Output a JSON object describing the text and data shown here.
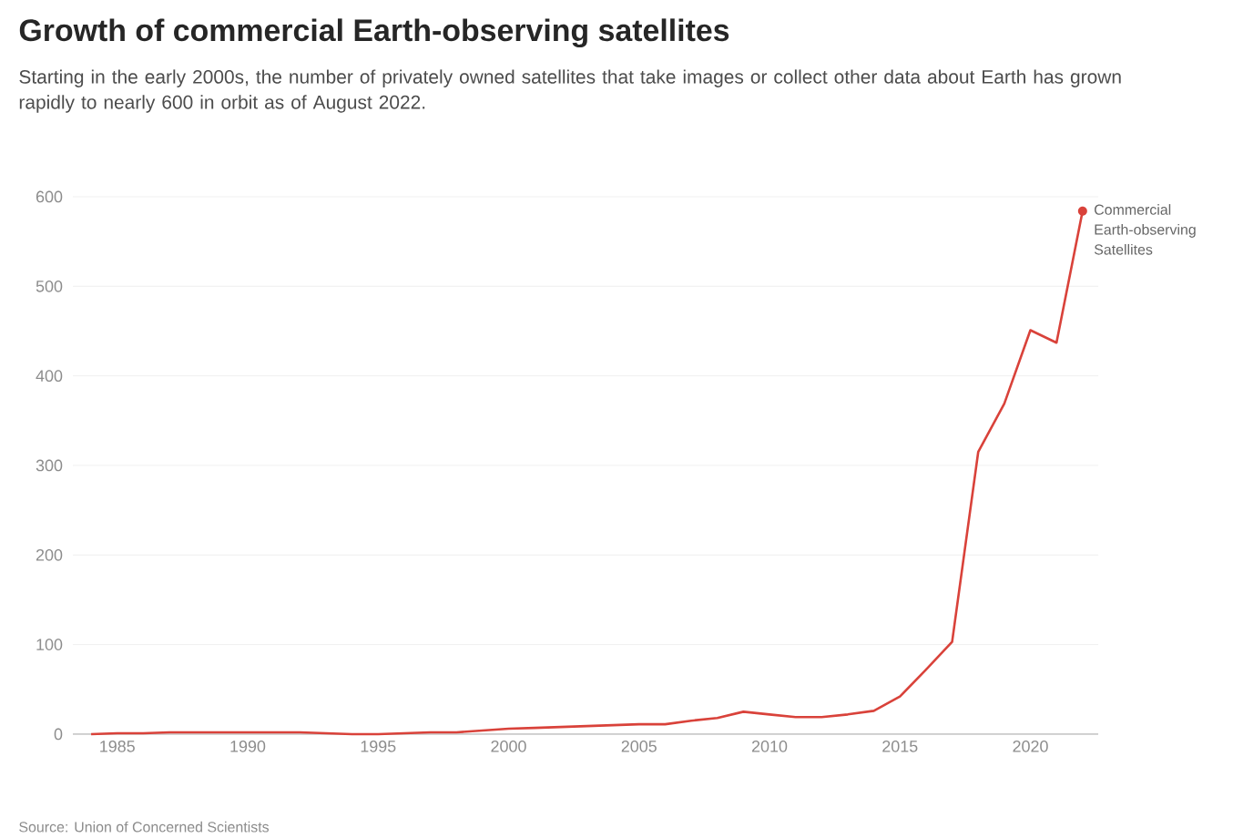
{
  "chart_data": {
    "type": "line",
    "title": "Growth of commercial Earth-observing satellites",
    "subtitle": "Starting in the early 2000s, the number of privately owned satellites that take images or collect other data about Earth has grown rapidly to nearly 600 in orbit as of August 2022.",
    "x": [
      1984,
      1985,
      1986,
      1987,
      1988,
      1989,
      1990,
      1991,
      1992,
      1993,
      1994,
      1995,
      1996,
      1997,
      1998,
      1999,
      2000,
      2001,
      2002,
      2003,
      2004,
      2005,
      2006,
      2007,
      2008,
      2009,
      2010,
      2011,
      2012,
      2013,
      2014,
      2015,
      2016,
      2017,
      2018,
      2019,
      2020,
      2021,
      2022
    ],
    "series": [
      {
        "name": "Commercial Earth-observing Satellites",
        "color": "#d9423a",
        "values": [
          0,
          1,
          1,
          2,
          2,
          2,
          2,
          2,
          2,
          1,
          0,
          0,
          1,
          2,
          2,
          4,
          6,
          7,
          8,
          9,
          10,
          11,
          11,
          15,
          18,
          25,
          22,
          19,
          19,
          22,
          26,
          42,
          72,
          103,
          315,
          369,
          451,
          437,
          584
        ]
      }
    ],
    "xlim": [
      1983.3,
      2022.6
    ],
    "xticks": [
      1985,
      1990,
      1995,
      2000,
      2005,
      2010,
      2015,
      2020
    ],
    "ylim": [
      0,
      600
    ],
    "yticks": [
      0,
      100,
      200,
      300,
      400,
      500,
      600
    ],
    "grid": "y",
    "annotations": [
      "Source: Union of Concerned Scientists"
    ]
  }
}
